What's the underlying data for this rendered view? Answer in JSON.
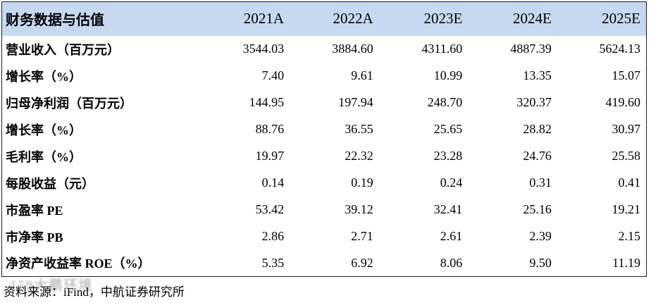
{
  "table": {
    "title": "财务数据与估值",
    "years": [
      "2021A",
      "2022A",
      "2023E",
      "2024E",
      "2025E"
    ],
    "rows": [
      {
        "label": "营业收入（百万元）",
        "values": [
          "3544.03",
          "3884.60",
          "4311.60",
          "4887.39",
          "5624.13"
        ]
      },
      {
        "label": "增长率（%）",
        "values": [
          "7.40",
          "9.61",
          "10.99",
          "13.35",
          "15.07"
        ]
      },
      {
        "label": "归母净利润（百万元）",
        "values": [
          "144.95",
          "197.94",
          "248.70",
          "320.37",
          "419.60"
        ]
      },
      {
        "label": "增长率（%）",
        "values": [
          "88.76",
          "36.55",
          "25.65",
          "28.82",
          "30.97"
        ]
      },
      {
        "label": "毛利率（%）",
        "values": [
          "19.97",
          "22.32",
          "23.28",
          "24.76",
          "25.58"
        ]
      },
      {
        "label": "每股收益（元）",
        "values": [
          "0.14",
          "0.19",
          "0.24",
          "0.31",
          "0.41"
        ]
      },
      {
        "label": "市盈率 PE",
        "values": [
          "53.42",
          "39.12",
          "32.41",
          "25.16",
          "19.21"
        ]
      },
      {
        "label": "市净率 PB",
        "values": [
          "2.86",
          "2.71",
          "2.61",
          "2.39",
          "2.15"
        ]
      },
      {
        "label": "净资产收益率 ROE（%）",
        "values": [
          "5.35",
          "6.92",
          "8.06",
          "9.50",
          "11.19"
        ]
      }
    ]
  },
  "footer": {
    "source": "资料来源：iFind，中航证券研究所"
  },
  "watermark": {
    "text": "159大鹏环境"
  },
  "colors": {
    "header_bg": "#c6d9f1",
    "border": "#1f1f1f",
    "text": "#000000",
    "watermark_gray": "#969696"
  }
}
